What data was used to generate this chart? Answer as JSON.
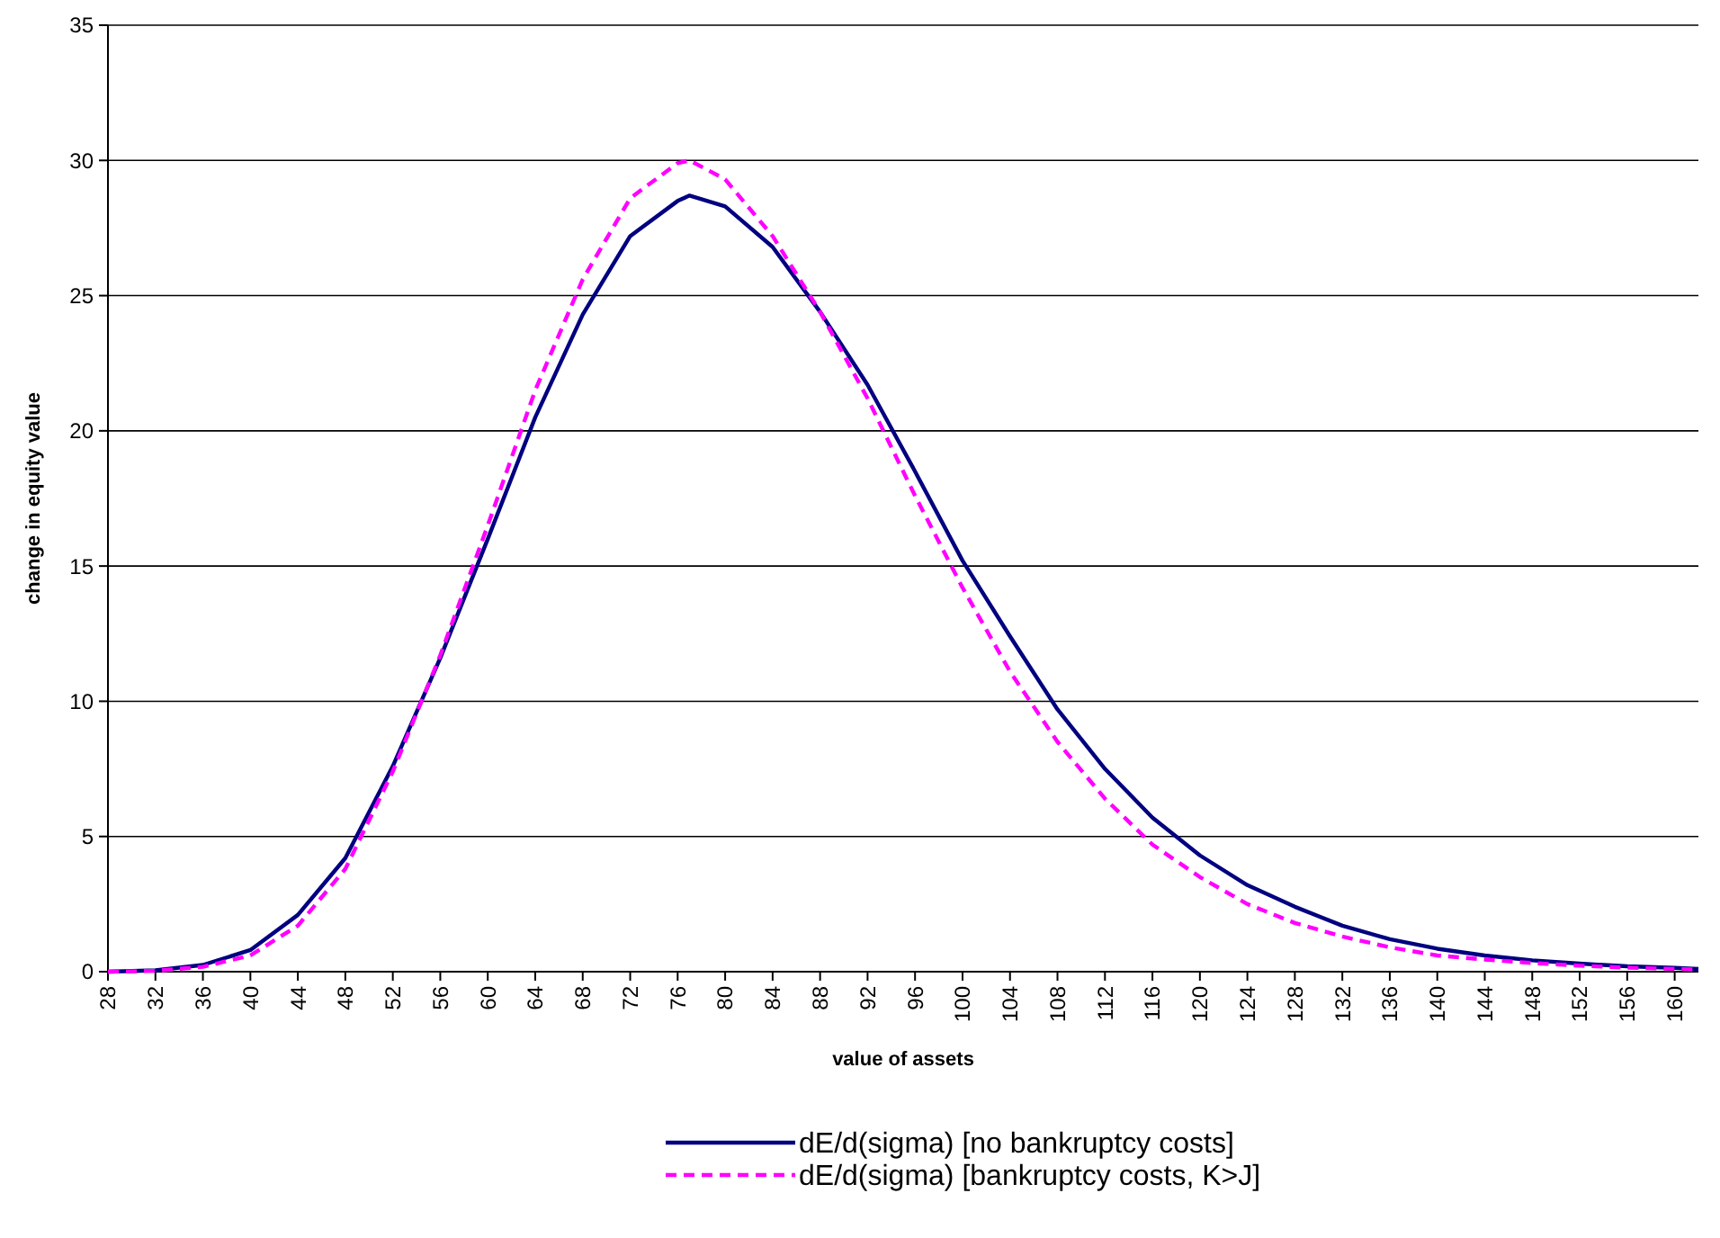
{
  "chart_data": {
    "type": "line",
    "xlabel": "value of assets",
    "ylabel": "change in equity value",
    "x": [
      28,
      32,
      36,
      40,
      44,
      48,
      52,
      56,
      60,
      64,
      68,
      72,
      76,
      77,
      80,
      84,
      88,
      92,
      96,
      100,
      104,
      108,
      112,
      116,
      120,
      124,
      128,
      132,
      136,
      140,
      144,
      148,
      152,
      156,
      160,
      162
    ],
    "series": [
      {
        "name": "dE/d(sigma) [no bankruptcy costs]",
        "color": "#000080",
        "line_style": "solid",
        "values": [
          0,
          0.05,
          0.25,
          0.8,
          2.1,
          4.2,
          7.6,
          11.6,
          16.0,
          20.5,
          24.3,
          27.2,
          28.5,
          28.7,
          28.3,
          26.8,
          24.4,
          21.7,
          18.5,
          15.2,
          12.4,
          9.7,
          7.5,
          5.7,
          4.3,
          3.2,
          2.4,
          1.7,
          1.2,
          0.85,
          0.6,
          0.42,
          0.3,
          0.2,
          0.14,
          0.1
        ]
      },
      {
        "name": "dE/d(sigma) [bankruptcy costs, K>J]",
        "color": "#ff00ff",
        "line_style": "dashed",
        "values": [
          0,
          0.03,
          0.18,
          0.6,
          1.7,
          3.8,
          7.4,
          11.7,
          16.5,
          21.5,
          25.6,
          28.6,
          29.9,
          30.0,
          29.3,
          27.2,
          24.4,
          21.2,
          17.6,
          14.2,
          11.1,
          8.5,
          6.4,
          4.7,
          3.5,
          2.5,
          1.8,
          1.3,
          0.9,
          0.6,
          0.45,
          0.32,
          0.22,
          0.15,
          0.1,
          0.08
        ]
      }
    ],
    "xlim": [
      28,
      162
    ],
    "xticks": [
      28,
      32,
      36,
      40,
      44,
      48,
      52,
      56,
      60,
      64,
      68,
      72,
      76,
      80,
      84,
      88,
      92,
      96,
      100,
      104,
      108,
      112,
      116,
      120,
      124,
      128,
      132,
      136,
      140,
      144,
      148,
      152,
      156,
      160
    ],
    "ylim": [
      0,
      35
    ],
    "yticks": [
      0,
      5,
      10,
      15,
      20,
      25,
      30,
      35
    ],
    "grid": "y",
    "legend": "bottom",
    "marker": "none"
  }
}
